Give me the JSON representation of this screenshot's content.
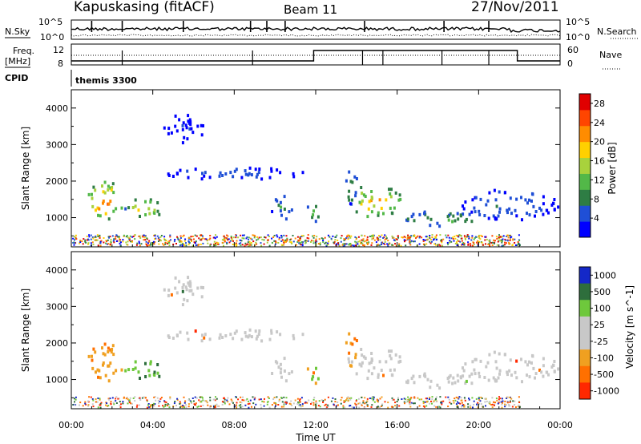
{
  "header": {
    "station": "Kapuskasing (fitACF)",
    "beam": "Beam 11",
    "date": "27/Nov/2011"
  },
  "panels": {
    "nsky_label": "N.Sky",
    "nsky_ticks": [
      "10^5",
      "10^0"
    ],
    "nsearch_label": "N.Search",
    "nsearch_ticks": [
      "10^5",
      "10^0"
    ],
    "freq_label_1": "Freq.",
    "freq_label_2": "[MHz]",
    "freq_ticks": [
      "12",
      "8"
    ],
    "nave_label": "Nave",
    "nave_ticks": [
      "60",
      "0"
    ],
    "cpid_label": "CPID",
    "cpid_value": "themis 3300"
  },
  "colors": {
    "power": [
      "#0000ff",
      "#1f4fd6",
      "#2e7d44",
      "#52b848",
      "#a8d23c",
      "#ffd000",
      "#ff8c00",
      "#ff4500",
      "#e00000"
    ],
    "velocity": [
      "#1428c8",
      "#2e6e3c",
      "#6ec83c",
      "#c8c8c8",
      "#c8c8c8",
      "#f0a020",
      "#ff7000",
      "#ff2800"
    ],
    "ground_scatter": "#c8c8c8"
  },
  "chart_data": [
    {
      "type": "heatmap",
      "quantity": "Power",
      "ylabel": "Slant Range [km]",
      "xlabel": "Time UT",
      "xticks": [
        "00:00",
        "04:00",
        "08:00",
        "12:00",
        "16:00",
        "20:00",
        "00:00"
      ],
      "yticks": [
        1000,
        2000,
        3000,
        4000
      ],
      "xlim_hours": [
        0,
        24
      ],
      "ylim_km": [
        200,
        4500
      ],
      "colorbar_label": "Power [dB]",
      "colorbar_ticks": [
        4,
        8,
        12,
        16,
        20,
        24,
        28
      ],
      "colorbar_range": [
        0,
        30
      ]
    },
    {
      "type": "heatmap",
      "quantity": "Velocity",
      "ylabel": "Slant Range [km]",
      "xlabel": "Time UT",
      "xticks": [
        "00:00",
        "04:00",
        "08:00",
        "12:00",
        "16:00",
        "20:00",
        "00:00"
      ],
      "yticks": [
        1000,
        2000,
        3000,
        4000
      ],
      "xlim_hours": [
        0,
        24
      ],
      "ylim_km": [
        200,
        4500
      ],
      "colorbar_label": "Velocity [m s^-1]",
      "colorbar_ticks": [
        "1000",
        "500",
        "100",
        "25",
        "-25",
        "-100",
        "-500",
        "-1000"
      ]
    }
  ],
  "time_axis_title": "Time UT"
}
